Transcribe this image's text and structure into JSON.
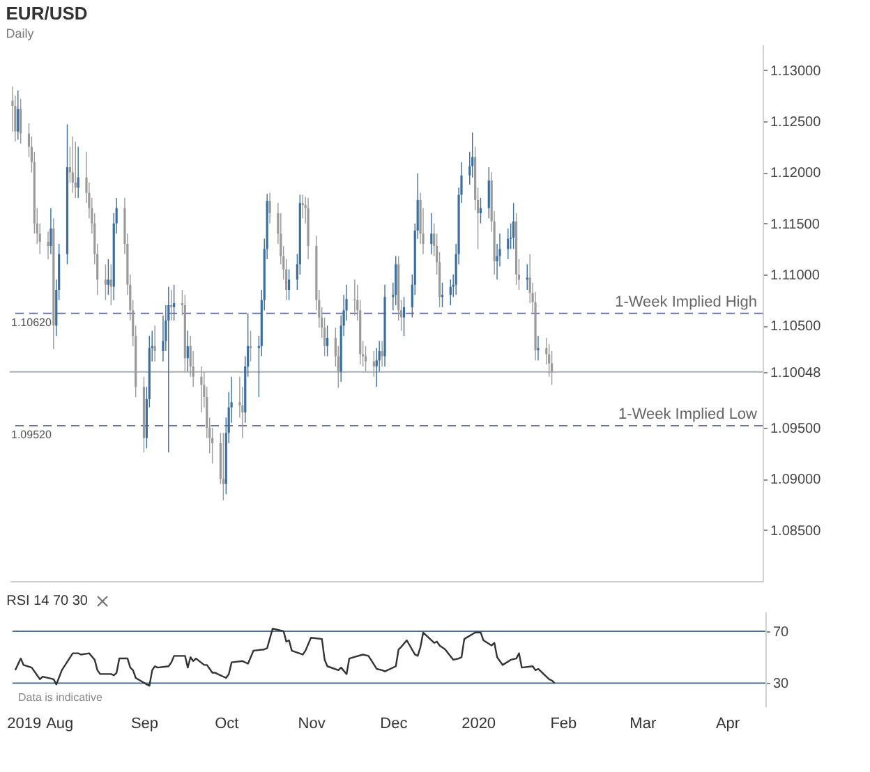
{
  "chart_data": [
    {
      "type": "candlestick",
      "title": "EUR/USD",
      "subtitle": "Daily",
      "x": [
        "2019-07-16",
        "2019-07-17",
        "2019-07-18",
        "2019-07-19",
        "2019-07-22",
        "2019-07-23",
        "2019-07-24",
        "2019-07-25",
        "2019-07-26",
        "2019-07-29",
        "2019-07-30",
        "2019-07-31",
        "2019-08-01",
        "2019-08-02",
        "2019-08-05",
        "2019-08-06",
        "2019-08-07",
        "2019-08-08",
        "2019-08-09",
        "2019-08-12",
        "2019-08-13",
        "2019-08-14",
        "2019-08-15",
        "2019-08-16",
        "2019-08-19",
        "2019-08-20",
        "2019-08-21",
        "2019-08-22",
        "2019-08-23",
        "2019-08-26",
        "2019-08-27",
        "2019-08-28",
        "2019-08-29",
        "2019-08-30",
        "2019-09-02",
        "2019-09-03",
        "2019-09-04",
        "2019-09-05",
        "2019-09-06",
        "2019-09-09",
        "2019-09-10",
        "2019-09-11",
        "2019-09-12",
        "2019-09-13",
        "2019-09-16",
        "2019-09-17",
        "2019-09-18",
        "2019-09-19",
        "2019-09-20",
        "2019-09-23",
        "2019-09-24",
        "2019-09-25",
        "2019-09-26",
        "2019-09-27",
        "2019-09-30",
        "2019-10-01",
        "2019-10-02",
        "2019-10-03",
        "2019-10-04",
        "2019-10-07",
        "2019-10-08",
        "2019-10-09",
        "2019-10-10",
        "2019-10-11",
        "2019-10-14",
        "2019-10-15",
        "2019-10-16",
        "2019-10-17",
        "2019-10-18",
        "2019-10-21",
        "2019-10-22",
        "2019-10-23",
        "2019-10-24",
        "2019-10-25",
        "2019-10-28",
        "2019-10-29",
        "2019-10-30",
        "2019-10-31",
        "2019-11-01",
        "2019-11-04",
        "2019-11-05",
        "2019-11-06",
        "2019-11-07",
        "2019-11-08",
        "2019-11-11",
        "2019-11-12",
        "2019-11-13",
        "2019-11-14",
        "2019-11-15",
        "2019-11-18",
        "2019-11-19",
        "2019-11-20",
        "2019-11-21",
        "2019-11-22",
        "2019-11-25",
        "2019-11-26",
        "2019-11-27",
        "2019-11-28",
        "2019-11-29",
        "2019-12-02",
        "2019-12-03",
        "2019-12-04",
        "2019-12-05",
        "2019-12-06",
        "2019-12-09",
        "2019-12-10",
        "2019-12-11",
        "2019-12-12",
        "2019-12-13",
        "2019-12-16",
        "2019-12-17",
        "2019-12-18",
        "2019-12-19",
        "2019-12-20",
        "2019-12-23",
        "2019-12-24",
        "2019-12-25",
        "2019-12-26",
        "2019-12-27",
        "2019-12-30",
        "2019-12-31",
        "2020-01-01",
        "2020-01-02",
        "2020-01-03",
        "2020-01-06",
        "2020-01-07",
        "2020-01-08",
        "2020-01-09",
        "2020-01-10",
        "2020-01-13",
        "2020-01-14",
        "2020-01-15",
        "2020-01-16",
        "2020-01-17",
        "2020-01-20",
        "2020-01-21",
        "2020-01-22",
        "2020-01-23",
        "2020-01-24",
        "2020-01-27",
        "2020-01-28",
        "2020-01-29"
      ],
      "ohlc": [
        [
          1.127,
          1.1284,
          1.124,
          1.1265
        ],
        [
          1.1265,
          1.1275,
          1.123,
          1.124
        ],
        [
          1.124,
          1.128,
          1.1232,
          1.1262
        ],
        [
          1.1262,
          1.1272,
          1.1228,
          1.1238
        ],
        [
          1.1238,
          1.1248,
          1.1215,
          1.1225
        ],
        [
          1.1225,
          1.1235,
          1.12,
          1.121
        ],
        [
          1.121,
          1.122,
          1.114,
          1.115
        ],
        [
          1.115,
          1.1165,
          1.113,
          1.114
        ],
        [
          1.114,
          1.115,
          1.112,
          1.1132
        ],
        [
          1.1132,
          1.1142,
          1.1115,
          1.1128
        ],
        [
          1.1128,
          1.1165,
          1.112,
          1.1145
        ],
        [
          1.1145,
          1.1155,
          1.1027,
          1.105
        ],
        [
          1.105,
          1.1095,
          1.104,
          1.1085
        ],
        [
          1.1085,
          1.113,
          1.1075,
          1.112
        ],
        [
          1.112,
          1.1247,
          1.111,
          1.1205
        ],
        [
          1.1205,
          1.1225,
          1.119,
          1.12
        ],
        [
          1.12,
          1.1235,
          1.118,
          1.119
        ],
        [
          1.119,
          1.123,
          1.1175,
          1.1185
        ],
        [
          1.1185,
          1.1225,
          1.1175,
          1.1195
        ],
        [
          1.1195,
          1.122,
          1.117,
          1.118
        ],
        [
          1.118,
          1.119,
          1.1155,
          1.1165
        ],
        [
          1.1165,
          1.1175,
          1.114,
          1.115
        ],
        [
          1.115,
          1.116,
          1.111,
          1.112
        ],
        [
          1.112,
          1.113,
          1.108,
          1.1095
        ],
        [
          1.1095,
          1.111,
          1.1075,
          1.109
        ],
        [
          1.109,
          1.1115,
          1.108,
          1.1095
        ],
        [
          1.1095,
          1.111,
          1.107,
          1.1088
        ],
        [
          1.1088,
          1.116,
          1.1075,
          1.115
        ],
        [
          1.115,
          1.1175,
          1.114,
          1.1165
        ],
        [
          1.1165,
          1.1175,
          1.112,
          1.113
        ],
        [
          1.113,
          1.114,
          1.108,
          1.109
        ],
        [
          1.109,
          1.11,
          1.1055,
          1.1065
        ],
        [
          1.1065,
          1.1075,
          1.103,
          1.104
        ],
        [
          1.104,
          1.105,
          1.098,
          1.099
        ],
        [
          1.099,
          1.1,
          1.0926,
          1.094
        ],
        [
          1.094,
          1.099,
          1.093,
          1.0978
        ],
        [
          1.0978,
          1.104,
          1.097,
          1.1028
        ],
        [
          1.1028,
          1.1045,
          1.1015,
          1.103
        ],
        [
          1.103,
          1.105,
          1.1015,
          1.1025
        ],
        [
          1.1025,
          1.106,
          1.1015,
          1.1035
        ],
        [
          1.1035,
          1.107,
          1.1025,
          1.1055
        ],
        [
          1.1055,
          1.1088,
          1.0926,
          1.107
        ],
        [
          1.107,
          1.1085,
          1.1055,
          1.1068
        ],
        [
          1.1068,
          1.109,
          1.1055,
          1.1072
        ],
        [
          1.1072,
          1.1085,
          1.106,
          1.107
        ],
        [
          1.107,
          1.108,
          1.1005,
          1.1018
        ],
        [
          1.1018,
          1.1045,
          1.1005,
          1.103
        ],
        [
          1.103,
          1.104,
          1.1,
          1.101
        ],
        [
          1.101,
          1.1025,
          1.099,
          1.1
        ],
        [
          1.1,
          1.101,
          1.0965,
          1.0992
        ],
        [
          1.0992,
          1.1005,
          1.097,
          1.098
        ],
        [
          1.098,
          1.099,
          1.094,
          1.095
        ],
        [
          1.095,
          1.096,
          1.0925,
          1.094
        ],
        [
          1.094,
          1.095,
          1.0915,
          1.0935
        ],
        [
          1.0935,
          1.0945,
          1.0895,
          1.09
        ],
        [
          1.09,
          1.0945,
          1.0879,
          1.0895
        ],
        [
          1.0895,
          1.096,
          1.0885,
          1.0945
        ],
        [
          1.0945,
          1.0985,
          1.0935,
          1.097
        ],
        [
          1.097,
          1.1,
          1.0955,
          1.0975
        ],
        [
          1.0975,
          1.1,
          1.096,
          1.0972
        ],
        [
          1.0972,
          1.099,
          1.094,
          1.0965
        ],
        [
          1.0965,
          1.102,
          1.0955,
          1.101
        ],
        [
          1.101,
          1.1062,
          1.1,
          1.103
        ],
        [
          1.103,
          1.1045,
          1.1015,
          1.1028
        ],
        [
          1.1028,
          1.104,
          1.098,
          1.103
        ],
        [
          1.103,
          1.1085,
          1.102,
          1.1075
        ],
        [
          1.1075,
          1.1135,
          1.1065,
          1.1125
        ],
        [
          1.1125,
          1.1179,
          1.1115,
          1.1172
        ],
        [
          1.1172,
          1.118,
          1.115,
          1.116
        ],
        [
          1.116,
          1.117,
          1.113,
          1.114
        ],
        [
          1.114,
          1.116,
          1.111,
          1.1118
        ],
        [
          1.1118,
          1.1128,
          1.1095,
          1.1105
        ],
        [
          1.1105,
          1.1115,
          1.1075,
          1.1085
        ],
        [
          1.1085,
          1.1105,
          1.1075,
          1.1095
        ],
        [
          1.1095,
          1.112,
          1.1085,
          1.111
        ],
        [
          1.111,
          1.1178,
          1.11,
          1.117
        ],
        [
          1.117,
          1.1178,
          1.1155,
          1.1168
        ],
        [
          1.1168,
          1.1176,
          1.115,
          1.1165
        ],
        [
          1.1165,
          1.1175,
          1.1115,
          1.1128
        ],
        [
          1.1128,
          1.1138,
          1.1065,
          1.1075
        ],
        [
          1.1075,
          1.1085,
          1.1048,
          1.1058
        ],
        [
          1.1058,
          1.1068,
          1.1038,
          1.1048
        ],
        [
          1.1048,
          1.1058,
          1.102,
          1.103
        ],
        [
          1.103,
          1.105,
          1.102,
          1.1038
        ],
        [
          1.1038,
          1.1048,
          1.101,
          1.102
        ],
        [
          1.102,
          1.103,
          1.0989,
          1.1005
        ],
        [
          1.1005,
          1.106,
          1.0995,
          1.105
        ],
        [
          1.105,
          1.108,
          1.104,
          1.1065
        ],
        [
          1.1065,
          1.109,
          1.1055,
          1.1076
        ],
        [
          1.1076,
          1.1095,
          1.106,
          1.1075
        ],
        [
          1.1075,
          1.109,
          1.1055,
          1.1065
        ],
        [
          1.1065,
          1.1075,
          1.1012,
          1.1022
        ],
        [
          1.1022,
          1.1035,
          1.101,
          1.102
        ],
        [
          1.102,
          1.103,
          1.1005,
          1.1015
        ],
        [
          1.1015,
          1.1025,
          1.1,
          1.101
        ],
        [
          1.101,
          1.1028,
          1.099,
          1.1016
        ],
        [
          1.1016,
          1.1035,
          1.1005,
          1.1025
        ],
        [
          1.1025,
          1.1035,
          1.101,
          1.102
        ],
        [
          1.102,
          1.109,
          1.101,
          1.1078
        ],
        [
          1.1078,
          1.1092,
          1.1065,
          1.108
        ],
        [
          1.108,
          1.1118,
          1.107,
          1.111
        ],
        [
          1.111,
          1.1118,
          1.1055,
          1.1065
        ],
        [
          1.1065,
          1.1075,
          1.1045,
          1.1058
        ],
        [
          1.1058,
          1.1078,
          1.104,
          1.1068
        ],
        [
          1.1068,
          1.11,
          1.1058,
          1.109
        ],
        [
          1.109,
          1.115,
          1.108,
          1.1143
        ],
        [
          1.1143,
          1.1199,
          1.1135,
          1.1173
        ],
        [
          1.1173,
          1.118,
          1.113,
          1.114
        ],
        [
          1.114,
          1.1165,
          1.112,
          1.113
        ],
        [
          1.113,
          1.116,
          1.112,
          1.114
        ],
        [
          1.114,
          1.115,
          1.1118,
          1.1128
        ],
        [
          1.1128,
          1.114,
          1.11,
          1.1112
        ],
        [
          1.1112,
          1.1122,
          1.1068,
          1.1078
        ],
        [
          1.1078,
          1.1092,
          1.1068,
          1.108
        ],
        [
          1.108,
          1.1095,
          1.107,
          1.1088
        ],
        [
          1.1088,
          1.11,
          1.1078,
          1.109
        ],
        [
          1.109,
          1.113,
          1.108,
          1.112
        ],
        [
          1.112,
          1.1185,
          1.111,
          1.1178
        ],
        [
          1.1178,
          1.121,
          1.117,
          1.1197
        ],
        [
          1.1197,
          1.122,
          1.1188,
          1.1206
        ],
        [
          1.1206,
          1.1239,
          1.1195,
          1.1215
        ],
        [
          1.1215,
          1.1225,
          1.1163,
          1.1173
        ],
        [
          1.1173,
          1.1185,
          1.1125,
          1.116
        ],
        [
          1.116,
          1.1175,
          1.115,
          1.1165
        ],
        [
          1.1165,
          1.1205,
          1.1155,
          1.1192
        ],
        [
          1.1192,
          1.12,
          1.1142,
          1.1152
        ],
        [
          1.1152,
          1.1162,
          1.11,
          1.1113
        ],
        [
          1.1113,
          1.113,
          1.1095,
          1.1118
        ],
        [
          1.1118,
          1.114,
          1.1108,
          1.1125
        ],
        [
          1.1125,
          1.1145,
          1.1115,
          1.1135
        ],
        [
          1.1135,
          1.115,
          1.1125,
          1.1136
        ],
        [
          1.1136,
          1.117,
          1.1125,
          1.1152
        ],
        [
          1.1152,
          1.116,
          1.109,
          1.11
        ],
        [
          1.11,
          1.1115,
          1.1085,
          1.1095
        ],
        [
          1.1095,
          1.111,
          1.1085,
          1.1097
        ],
        [
          1.1097,
          1.112,
          1.1072,
          1.1082
        ],
        [
          1.1082,
          1.1092,
          1.1063,
          1.1073
        ],
        [
          1.1073,
          1.1083,
          1.1016,
          1.1026
        ],
        [
          1.1026,
          1.104,
          1.1016,
          1.1028
        ],
        [
          1.1028,
          1.1038,
          1.1012,
          1.1022
        ],
        [
          1.1022,
          1.1032,
          1.1,
          1.1013
        ],
        [
          1.1013,
          1.1025,
          1.0992,
          1.1005
        ]
      ],
      "colors": [
        "#9a9a9a",
        "#9a9a9a",
        "#3b6e9e",
        "#9a9a9a",
        "#9a9a9a",
        "#9a9a9a",
        "#9a9a9a",
        "#9a9a9a",
        "#9a9a9a",
        "#9a9a9a",
        "#3b6e9e",
        "#9a9a9a",
        "#3b6e9e",
        "#3b6e9e",
        "#3b6e9e",
        "#9a9a9a",
        "#9a9a9a",
        "#9a9a9a",
        "#3b6e9e",
        "#9a9a9a",
        "#9a9a9a",
        "#9a9a9a",
        "#9a9a9a",
        "#9a9a9a",
        "#9a9a9a",
        "#3b6e9e",
        "#9a9a9a",
        "#3b6e9e",
        "#3b6e9e",
        "#9a9a9a",
        "#9a9a9a",
        "#9a9a9a",
        "#9a9a9a",
        "#9a9a9a",
        "#9a9a9a",
        "#3b6e9e",
        "#3b6e9e",
        "#3b6e9e",
        "#9a9a9a",
        "#3b6e9e",
        "#3b6e9e",
        "#3b6e9e",
        "#9a9a9a",
        "#3b6e9e",
        "#9a9a9a",
        "#9a9a9a",
        "#3b6e9e",
        "#9a9a9a",
        "#9a9a9a",
        "#9a9a9a",
        "#9a9a9a",
        "#9a9a9a",
        "#9a9a9a",
        "#9a9a9a",
        "#9a9a9a",
        "#9a9a9a",
        "#3b6e9e",
        "#3b6e9e",
        "#3b6e9e",
        "#9a9a9a",
        "#9a9a9a",
        "#3b6e9e",
        "#3b6e9e",
        "#9a9a9a",
        "#3b6e9e",
        "#3b6e9e",
        "#3b6e9e",
        "#3b6e9e",
        "#9a9a9a",
        "#9a9a9a",
        "#9a9a9a",
        "#9a9a9a",
        "#9a9a9a",
        "#3b6e9e",
        "#3b6e9e",
        "#3b6e9e",
        "#9a9a9a",
        "#9a9a9a",
        "#9a9a9a",
        "#9a9a9a",
        "#9a9a9a",
        "#9a9a9a",
        "#9a9a9a",
        "#3b6e9e",
        "#9a9a9a",
        "#9a9a9a",
        "#3b6e9e",
        "#3b6e9e",
        "#3b6e9e",
        "#9a9a9a",
        "#9a9a9a",
        "#9a9a9a",
        "#9a9a9a",
        "#9a9a9a",
        "#9a9a9a",
        "#3b6e9e",
        "#3b6e9e",
        "#9a9a9a",
        "#3b6e9e",
        "#3b6e9e",
        "#3b6e9e",
        "#9a9a9a",
        "#9a9a9a",
        "#3b6e9e",
        "#3b6e9e",
        "#3b6e9e",
        "#3b6e9e",
        "#9a9a9a",
        "#9a9a9a",
        "#3b6e9e",
        "#9a9a9a",
        "#9a9a9a",
        "#9a9a9a",
        "#3b6e9e",
        "#3b6e9e",
        "#3b6e9e",
        "#3b6e9e",
        "#3b6e9e",
        "#3b6e9e",
        "#3b6e9e",
        "#3b6e9e",
        "#9a9a9a",
        "#9a9a9a",
        "#3b6e9e",
        "#3b6e9e",
        "#9a9a9a",
        "#9a9a9a",
        "#3b6e9e",
        "#3b6e9e",
        "#3b6e9e",
        "#3b6e9e",
        "#3b6e9e",
        "#9a9a9a",
        "#9a9a9a",
        "#3b6e9e",
        "#9a9a9a",
        "#9a9a9a",
        "#9a9a9a",
        "#3b6e9e",
        "#9a9a9a",
        "#9a9a9a",
        "#9a9a9a"
      ],
      "xlim": [
        "2019-07-15",
        "2020-04-15"
      ],
      "ylim": [
        1.08,
        1.1325
      ],
      "yticks": [
        {
          "value": 1.085,
          "label": "1.08500"
        },
        {
          "value": 1.09,
          "label": "1.09000"
        },
        {
          "value": 1.095,
          "label": "1.09500"
        },
        {
          "value": 1.10048,
          "label": "1.10048"
        },
        {
          "value": 1.105,
          "label": "1.10500"
        },
        {
          "value": 1.11,
          "label": "1.11000"
        },
        {
          "value": 1.115,
          "label": "1.11500"
        },
        {
          "value": 1.12,
          "label": "1.12000"
        },
        {
          "value": 1.125,
          "label": "1.12500"
        },
        {
          "value": 1.13,
          "label": "1.13000"
        }
      ],
      "tick_labels": "y",
      "ref_lines": [
        {
          "axis": "y",
          "value": 1.1062,
          "label": "1-Week Implied High",
          "line_style": "dashed",
          "color": "#6f73a0"
        },
        {
          "axis": "y",
          "value": 1.0952,
          "label": "1-Week Implied Low",
          "line_style": "dashed",
          "color": "#6f73a0"
        },
        {
          "axis": "y",
          "value": 1.10048,
          "line_style": "solid",
          "color": "#a9adb3"
        }
      ],
      "annotations": [
        {
          "text": "1.10620",
          "x": "2019-07-15",
          "y": 1.1062
        },
        {
          "text": "1.09520",
          "x": "2019-07-15",
          "y": 1.0952
        }
      ]
    },
    {
      "type": "line",
      "title": "RSI 14 70 30",
      "series": [
        {
          "color": "#333333",
          "x": [
            "2019-07-16",
            "2019-07-18",
            "2019-07-19",
            "2019-07-22",
            "2019-07-24",
            "2019-07-25",
            "2019-07-26",
            "2019-07-30",
            "2019-07-31",
            "2019-08-02",
            "2019-08-06",
            "2019-08-08",
            "2019-08-09",
            "2019-08-12",
            "2019-08-14",
            "2019-08-15",
            "2019-08-16",
            "2019-08-20",
            "2019-08-21",
            "2019-08-22",
            "2019-08-23",
            "2019-08-26",
            "2019-08-27",
            "2019-08-28",
            "2019-08-29",
            "2019-09-02",
            "2019-09-03",
            "2019-09-04",
            "2019-09-05",
            "2019-09-06",
            "2019-09-10",
            "2019-09-11",
            "2019-09-12",
            "2019-09-16",
            "2019-09-17",
            "2019-09-18",
            "2019-09-19",
            "2019-09-20",
            "2019-09-23",
            "2019-09-24",
            "2019-09-26",
            "2019-09-27",
            "2019-10-01",
            "2019-10-02",
            "2019-10-03",
            "2019-10-07",
            "2019-10-09",
            "2019-10-11",
            "2019-10-15",
            "2019-10-16",
            "2019-10-18",
            "2019-10-22",
            "2019-10-23",
            "2019-10-24",
            "2019-10-25",
            "2019-10-29",
            "2019-10-30",
            "2019-11-01",
            "2019-11-05",
            "2019-11-06",
            "2019-11-07",
            "2019-11-11",
            "2019-11-12",
            "2019-11-14",
            "2019-11-15",
            "2019-11-20",
            "2019-11-22",
            "2019-11-25",
            "2019-11-27",
            "2019-11-28",
            "2019-12-02",
            "2019-12-03",
            "2019-12-04",
            "2019-12-06",
            "2019-12-09",
            "2019-12-10",
            "2019-12-11",
            "2019-12-12",
            "2019-12-16",
            "2019-12-17",
            "2019-12-18",
            "2019-12-20",
            "2019-12-23",
            "2019-12-25",
            "2019-12-26",
            "2019-12-27",
            "2019-12-31",
            "2020-01-02",
            "2020-01-03",
            "2020-01-06",
            "2020-01-07",
            "2020-01-08",
            "2020-01-10",
            "2020-01-13",
            "2020-01-15",
            "2020-01-16",
            "2020-01-17",
            "2020-01-21",
            "2020-01-22",
            "2020-01-23",
            "2020-01-27",
            "2020-01-28",
            "2020-01-29"
          ],
          "values": [
            40,
            49,
            44,
            42,
            36,
            33,
            35,
            33,
            29,
            40,
            53,
            53,
            52,
            53,
            48,
            40,
            37,
            37,
            36,
            38,
            49,
            49,
            42,
            40,
            34,
            29,
            28,
            40,
            43,
            42,
            43,
            46,
            51,
            51,
            42,
            50,
            47,
            49,
            44,
            44,
            38,
            38,
            34,
            37,
            46,
            47,
            45,
            55,
            56,
            57,
            72,
            70,
            62,
            63,
            55,
            52,
            55,
            65,
            64,
            48,
            43,
            40,
            42,
            37,
            49,
            52,
            51,
            41,
            40,
            39,
            43,
            56,
            58,
            63,
            52,
            51,
            58,
            69,
            61,
            62,
            59,
            56,
            48,
            49,
            50,
            64,
            69,
            69,
            63,
            59,
            61,
            50,
            44,
            48,
            49,
            53,
            42,
            43,
            40,
            41,
            33,
            32,
            30
          ]
        }
      ],
      "xlim": [
        "2019-07-15",
        "2020-04-15"
      ],
      "ylim": [
        12,
        85
      ],
      "yticks": [
        30,
        70
      ],
      "xticks": [
        {
          "value": "2019-07-19",
          "label": "2019"
        },
        {
          "value": "2019-08-01",
          "label": "Aug"
        },
        {
          "value": "2019-09-01",
          "label": "Sep"
        },
        {
          "value": "2019-10-01",
          "label": "Oct"
        },
        {
          "value": "2019-11-01",
          "label": "Nov"
        },
        {
          "value": "2019-12-01",
          "label": "Dec"
        },
        {
          "value": "2020-01-01",
          "label": "2020"
        },
        {
          "value": "2020-02-01",
          "label": "Feb"
        },
        {
          "value": "2020-03-01",
          "label": "Mar"
        },
        {
          "value": "2020-04-01",
          "label": "Apr"
        }
      ],
      "ref_lines": [
        {
          "axis": "y",
          "value": 70,
          "line_style": "solid",
          "color": "#4f6f92"
        },
        {
          "axis": "y",
          "value": 30,
          "line_style": "solid",
          "color": "#4f6f92"
        }
      ],
      "marker": "none",
      "line_style": "solid",
      "annotations": [
        "Data is indicative"
      ]
    }
  ]
}
